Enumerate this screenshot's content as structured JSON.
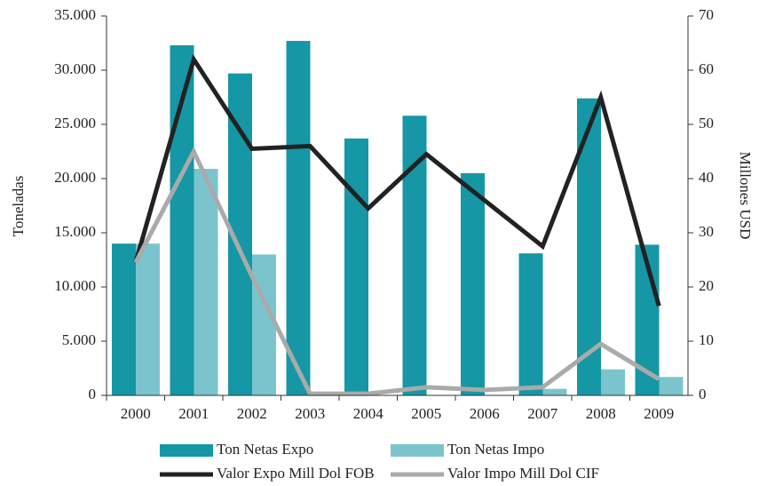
{
  "chart_data": {
    "type": "bar",
    "categories": [
      "2000",
      "2001",
      "2002",
      "2003",
      "2004",
      "2005",
      "2006",
      "2007",
      "2008",
      "2009"
    ],
    "y_label": "Toneladas",
    "y2_label": "Millones USD",
    "ylim": [
      0,
      35000
    ],
    "yticks": [
      0,
      {
        "value": 5000,
        "label": "5.000"
      },
      {
        "value": 10000,
        "label": "10.000"
      },
      {
        "value": 15000,
        "label": "15.000"
      },
      {
        "value": 20000,
        "label": "20.000"
      },
      {
        "value": 25000,
        "label": "25.000"
      },
      {
        "value": 30000,
        "label": "30.000"
      },
      {
        "value": 35000,
        "label": "35.000"
      }
    ],
    "y2lim": [
      0,
      70
    ],
    "y2ticks": [
      0,
      10,
      20,
      30,
      40,
      50,
      60,
      70
    ],
    "series": [
      {
        "name": "Ton Netas Expo",
        "type": "bar",
        "color": "#1597a5",
        "values": [
          14000,
          32300,
          29700,
          32700,
          23700,
          25800,
          20500,
          13100,
          27400,
          13900
        ]
      },
      {
        "name": "Ton Netas Impo",
        "type": "bar",
        "color": "#7cc4cd",
        "values": [
          14000,
          20900,
          13000,
          0,
          0,
          0,
          0,
          600,
          2400,
          1700
        ]
      },
      {
        "name": "Valor Expo Mill Dol FOB",
        "type": "line",
        "axis": "y2",
        "color": "#222222",
        "values": [
          24.5,
          62,
          45.5,
          46,
          34.5,
          44.5,
          36,
          27.5,
          55,
          16.5
        ]
      },
      {
        "name": "Valor Impo Mill Dol CIF",
        "type": "line",
        "axis": "y2",
        "color": "#aaaaaa",
        "values": [
          24.5,
          45,
          22,
          0.3,
          0.3,
          1.5,
          1,
          1.5,
          9.5,
          3
        ]
      }
    ]
  }
}
